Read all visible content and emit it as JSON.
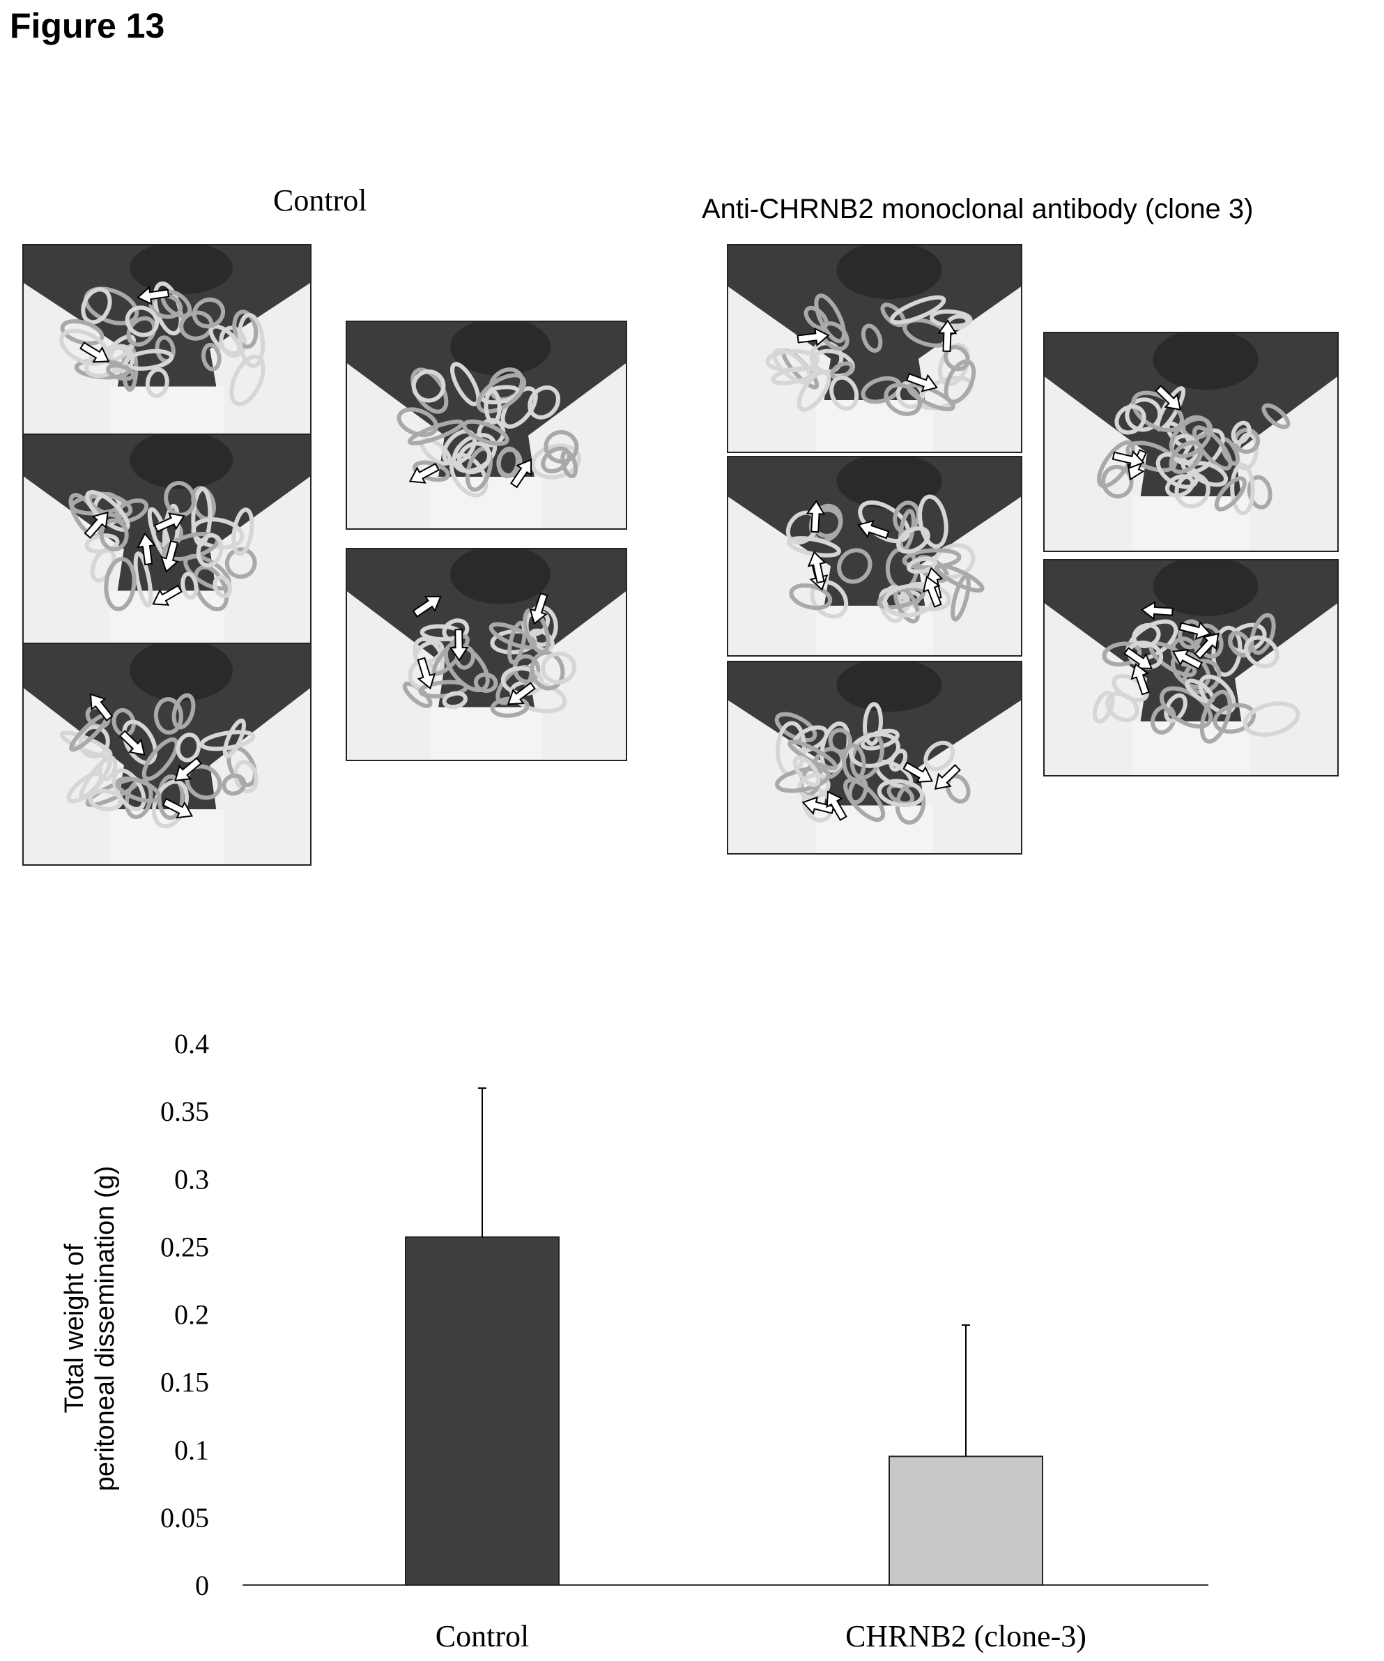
{
  "figure": {
    "title": "Figure 13",
    "group_control_label": "Control",
    "group_treated_label": "Anti-CHRNB2 monoclonal antibody (clone 3)"
  },
  "photos": {
    "control": [
      {
        "name": "control-photo-1"
      },
      {
        "name": "control-photo-2"
      },
      {
        "name": "control-photo-3"
      },
      {
        "name": "control-photo-4"
      },
      {
        "name": "control-photo-5"
      }
    ],
    "treated": [
      {
        "name": "treated-photo-1"
      },
      {
        "name": "treated-photo-2"
      },
      {
        "name": "treated-photo-3"
      },
      {
        "name": "treated-photo-4"
      },
      {
        "name": "treated-photo-5"
      }
    ],
    "colors": {
      "tissue": "#c9c9c9",
      "dark": "#2a2a2a",
      "skin": "#efefef",
      "arrow": "#ffffff"
    }
  },
  "chart_data": {
    "type": "bar",
    "categories": [
      "Control",
      "CHRNB2 (clone-3)"
    ],
    "values": [
      0.257,
      0.095
    ],
    "errors": [
      0.11,
      0.097
    ],
    "ylabel_line1": "Total weight of",
    "ylabel_line2": "peritoneal dissemination (g)",
    "ylim": [
      0,
      0.4
    ],
    "yticks": [
      "0",
      "0.05",
      "0.1",
      "0.15",
      "0.2",
      "0.25",
      "0.3",
      "0.35",
      "0.4"
    ],
    "bar_colors": [
      "#3f3f3f",
      "#c8c8c8"
    ],
    "grid": false,
    "legend": "none"
  }
}
